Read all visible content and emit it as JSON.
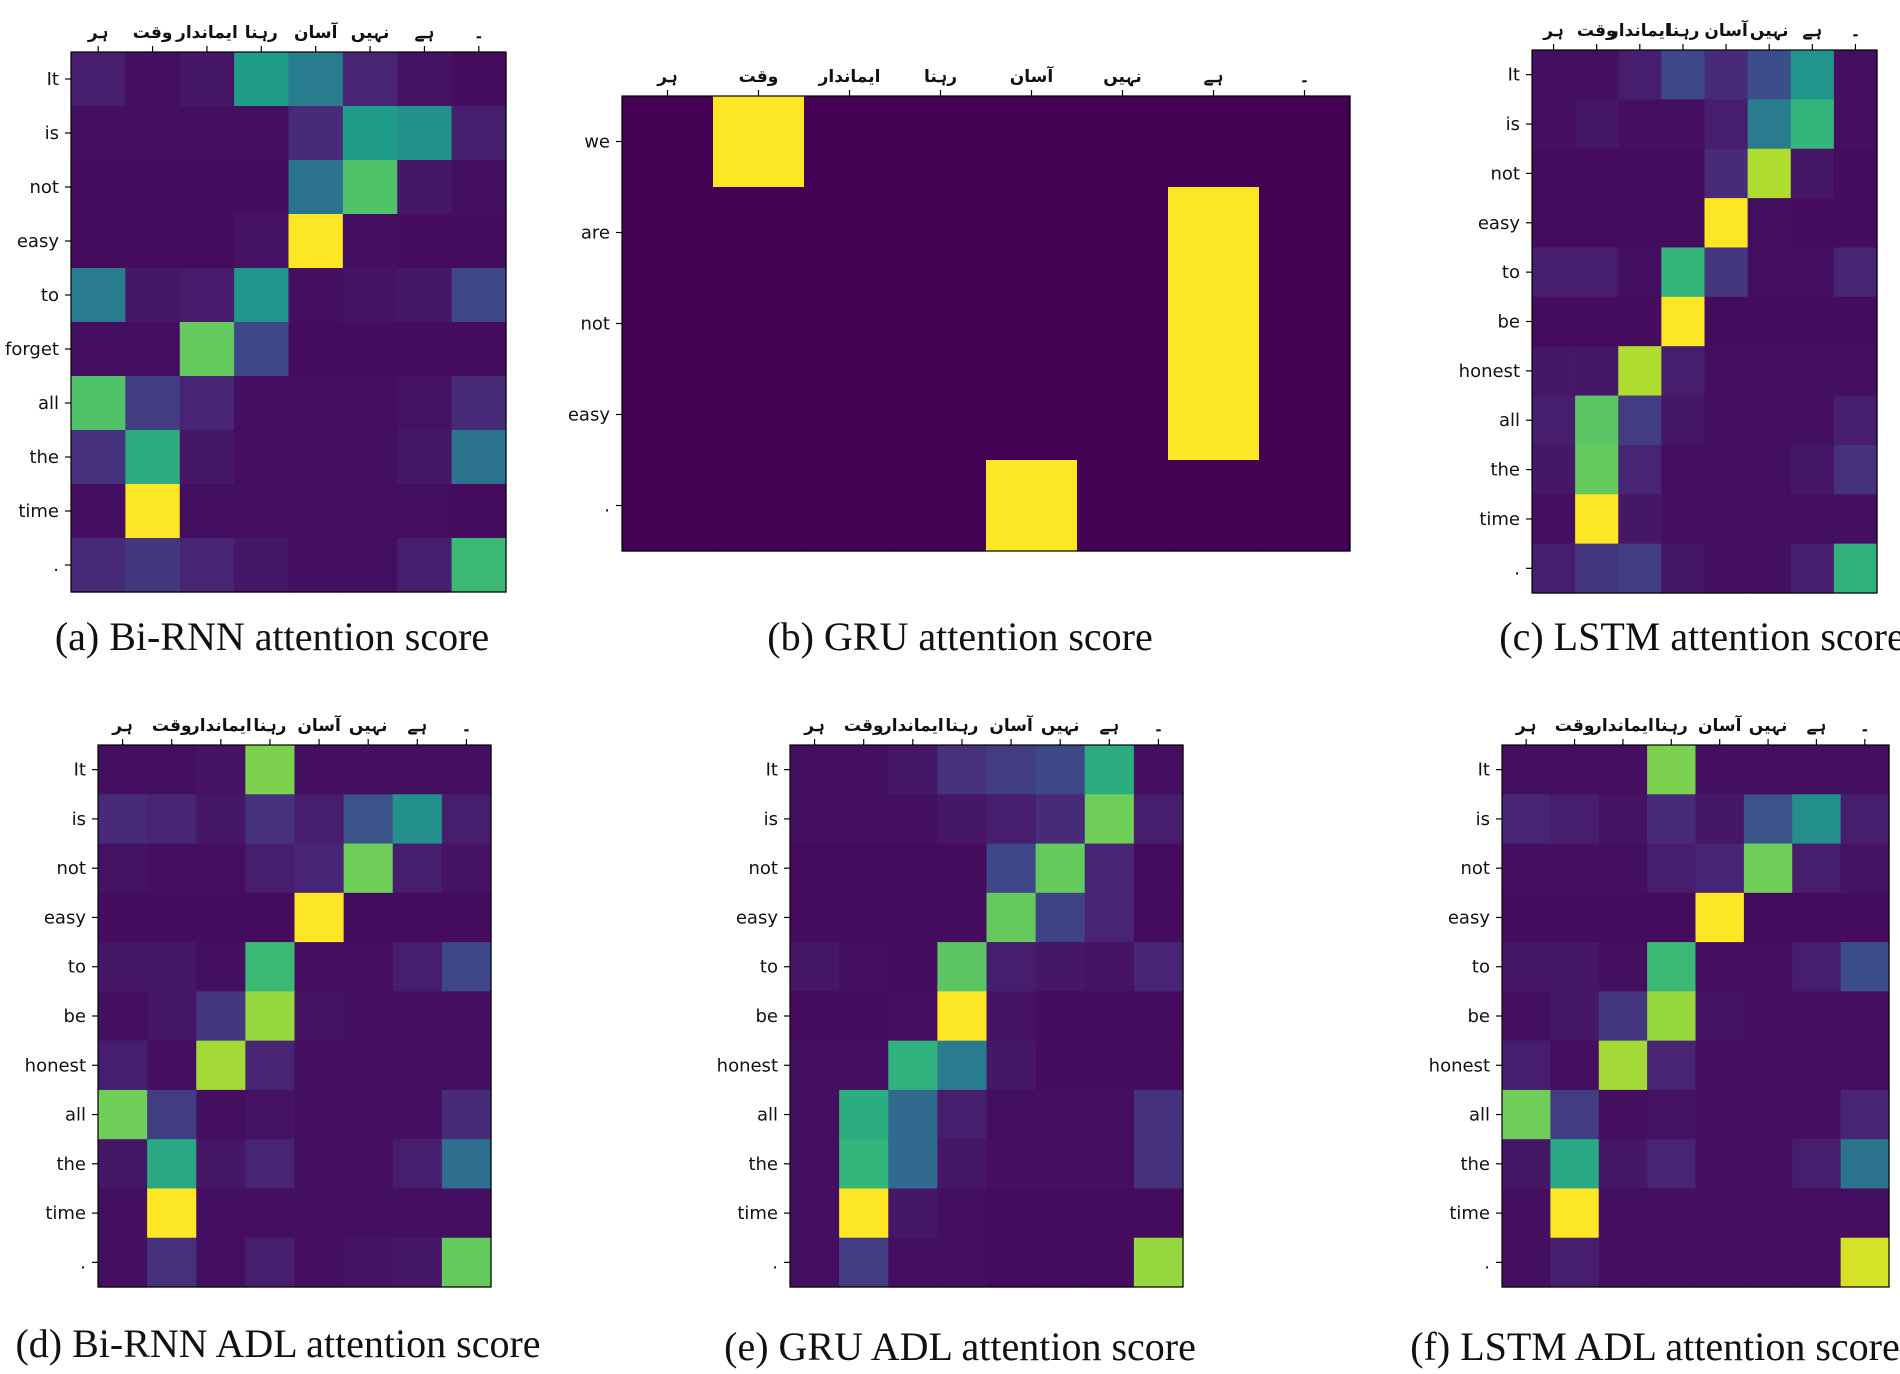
{
  "figure": {
    "colormap": [
      "#440154",
      "#482878",
      "#3e4989",
      "#31688e",
      "#26828e",
      "#1f9e89",
      "#35b779",
      "#6ece58",
      "#b5de2b",
      "#fde725"
    ]
  },
  "chart_data": [
    {
      "type": "heatmap",
      "title": "(a) Bi-RNN attention score",
      "x_labels": [
        "ہر",
        "وقت",
        "ایماندار",
        "رہنا",
        "آسان",
        "نہیں",
        "ہے",
        "۔"
      ],
      "y_labels": [
        "It",
        "is",
        "not",
        "easy",
        "to",
        "forget",
        "all",
        "the",
        "time",
        "."
      ],
      "value_range": [
        0,
        1
      ],
      "values": [
        [
          0.08,
          0.04,
          0.06,
          0.55,
          0.42,
          0.1,
          0.05,
          0.03
        ],
        [
          0.04,
          0.04,
          0.04,
          0.04,
          0.12,
          0.55,
          0.5,
          0.08
        ],
        [
          0.03,
          0.03,
          0.03,
          0.03,
          0.38,
          0.72,
          0.06,
          0.04
        ],
        [
          0.03,
          0.03,
          0.03,
          0.05,
          1.0,
          0.04,
          0.03,
          0.03
        ],
        [
          0.42,
          0.06,
          0.07,
          0.52,
          0.04,
          0.05,
          0.06,
          0.22
        ],
        [
          0.04,
          0.04,
          0.76,
          0.22,
          0.03,
          0.03,
          0.03,
          0.03
        ],
        [
          0.72,
          0.18,
          0.1,
          0.04,
          0.04,
          0.04,
          0.05,
          0.12
        ],
        [
          0.14,
          0.62,
          0.06,
          0.04,
          0.04,
          0.04,
          0.06,
          0.38
        ],
        [
          0.04,
          1.0,
          0.04,
          0.04,
          0.04,
          0.04,
          0.04,
          0.03
        ],
        [
          0.12,
          0.16,
          0.1,
          0.06,
          0.04,
          0.04,
          0.08,
          0.68
        ]
      ]
    },
    {
      "type": "heatmap",
      "title": "(b) GRU attention score",
      "x_labels": [
        "ہر",
        "وقت",
        "ایماندار",
        "رہنا",
        "آسان",
        "نہیں",
        "ہے",
        "۔"
      ],
      "y_labels": [
        "we",
        "are",
        "not",
        "easy",
        "."
      ],
      "value_range": [
        0,
        1
      ],
      "values": [
        [
          0.0,
          1.0,
          0.0,
          0.0,
          0.0,
          0.0,
          0.0,
          0.0
        ],
        [
          0.0,
          0.0,
          0.0,
          0.0,
          0.0,
          0.0,
          1.0,
          0.0
        ],
        [
          0.0,
          0.0,
          0.0,
          0.0,
          0.0,
          0.0,
          1.0,
          0.0
        ],
        [
          0.0,
          0.0,
          0.0,
          0.0,
          0.0,
          0.0,
          1.0,
          0.0
        ],
        [
          0.0,
          0.0,
          0.0,
          0.0,
          1.0,
          0.0,
          0.0,
          0.0
        ]
      ]
    },
    {
      "type": "heatmap",
      "title": "(c) LSTM attention score",
      "x_labels": [
        "ہر",
        "وقت",
        "ایماندار",
        "رہنا",
        "آسان",
        "نہیں",
        "ہے",
        "۔"
      ],
      "y_labels": [
        "It",
        "is",
        "not",
        "easy",
        "to",
        "be",
        "honest",
        "all",
        "the",
        "time",
        "."
      ],
      "value_range": [
        0,
        1
      ],
      "values": [
        [
          0.04,
          0.04,
          0.08,
          0.22,
          0.12,
          0.24,
          0.52,
          0.04
        ],
        [
          0.04,
          0.06,
          0.04,
          0.04,
          0.08,
          0.42,
          0.66,
          0.04
        ],
        [
          0.03,
          0.03,
          0.03,
          0.03,
          0.12,
          0.88,
          0.06,
          0.03
        ],
        [
          0.03,
          0.03,
          0.03,
          0.03,
          1.0,
          0.04,
          0.03,
          0.03
        ],
        [
          0.08,
          0.08,
          0.04,
          0.66,
          0.16,
          0.04,
          0.04,
          0.1
        ],
        [
          0.03,
          0.03,
          0.03,
          1.0,
          0.03,
          0.03,
          0.03,
          0.03
        ],
        [
          0.06,
          0.06,
          0.88,
          0.08,
          0.04,
          0.04,
          0.04,
          0.04
        ],
        [
          0.08,
          0.74,
          0.18,
          0.06,
          0.04,
          0.04,
          0.04,
          0.08
        ],
        [
          0.06,
          0.76,
          0.1,
          0.04,
          0.04,
          0.04,
          0.06,
          0.14
        ],
        [
          0.04,
          1.0,
          0.06,
          0.04,
          0.04,
          0.04,
          0.04,
          0.04
        ],
        [
          0.08,
          0.16,
          0.18,
          0.06,
          0.04,
          0.04,
          0.08,
          0.64
        ]
      ]
    },
    {
      "type": "heatmap",
      "title": "(d) Bi-RNN ADL attention score",
      "x_labels": [
        "ہر",
        "وقت",
        "ایماندار",
        "رہنا",
        "آسان",
        "نہیں",
        "ہے",
        "۔"
      ],
      "y_labels": [
        "It",
        "is",
        "not",
        "easy",
        "to",
        "be",
        "honest",
        "all",
        "the",
        "time",
        "."
      ],
      "value_range": [
        0,
        1
      ],
      "values": [
        [
          0.04,
          0.04,
          0.05,
          0.8,
          0.04,
          0.04,
          0.04,
          0.04
        ],
        [
          0.12,
          0.1,
          0.06,
          0.14,
          0.08,
          0.26,
          0.5,
          0.08
        ],
        [
          0.05,
          0.04,
          0.04,
          0.08,
          0.1,
          0.78,
          0.08,
          0.05
        ],
        [
          0.03,
          0.03,
          0.03,
          0.03,
          1.0,
          0.03,
          0.03,
          0.03
        ],
        [
          0.06,
          0.06,
          0.04,
          0.68,
          0.04,
          0.04,
          0.08,
          0.22
        ],
        [
          0.04,
          0.06,
          0.16,
          0.84,
          0.05,
          0.04,
          0.04,
          0.04
        ],
        [
          0.08,
          0.04,
          0.86,
          0.1,
          0.04,
          0.04,
          0.04,
          0.04
        ],
        [
          0.78,
          0.18,
          0.04,
          0.05,
          0.04,
          0.04,
          0.04,
          0.12
        ],
        [
          0.06,
          0.6,
          0.06,
          0.1,
          0.04,
          0.04,
          0.08,
          0.36
        ],
        [
          0.04,
          1.0,
          0.04,
          0.04,
          0.04,
          0.04,
          0.04,
          0.04
        ],
        [
          0.04,
          0.14,
          0.04,
          0.08,
          0.04,
          0.05,
          0.06,
          0.76
        ]
      ]
    },
    {
      "type": "heatmap",
      "title": "(e) GRU ADL attention score",
      "x_labels": [
        "ہر",
        "وقت",
        "ایماندار",
        "رہنا",
        "آسان",
        "نہیں",
        "ہے",
        "۔"
      ],
      "y_labels": [
        "It",
        "is",
        "not",
        "easy",
        "to",
        "be",
        "honest",
        "all",
        "the",
        "time",
        "."
      ],
      "value_range": [
        0,
        1
      ],
      "values": [
        [
          0.04,
          0.04,
          0.06,
          0.14,
          0.18,
          0.22,
          0.62,
          0.04
        ],
        [
          0.04,
          0.04,
          0.04,
          0.06,
          0.08,
          0.12,
          0.78,
          0.08
        ],
        [
          0.03,
          0.03,
          0.03,
          0.03,
          0.22,
          0.76,
          0.1,
          0.03
        ],
        [
          0.03,
          0.03,
          0.03,
          0.03,
          0.76,
          0.2,
          0.1,
          0.03
        ],
        [
          0.06,
          0.04,
          0.03,
          0.74,
          0.08,
          0.06,
          0.05,
          0.1
        ],
        [
          0.03,
          0.03,
          0.04,
          1.0,
          0.05,
          0.03,
          0.03,
          0.03
        ],
        [
          0.04,
          0.04,
          0.64,
          0.42,
          0.06,
          0.03,
          0.03,
          0.03
        ],
        [
          0.04,
          0.62,
          0.34,
          0.08,
          0.04,
          0.04,
          0.04,
          0.14
        ],
        [
          0.04,
          0.66,
          0.34,
          0.06,
          0.04,
          0.04,
          0.04,
          0.14
        ],
        [
          0.04,
          1.0,
          0.06,
          0.04,
          0.03,
          0.03,
          0.03,
          0.03
        ],
        [
          0.04,
          0.18,
          0.04,
          0.04,
          0.03,
          0.03,
          0.03,
          0.84
        ]
      ]
    },
    {
      "type": "heatmap",
      "title": "(f) LSTM ADL attention score",
      "x_labels": [
        "ہر",
        "وقت",
        "ایماندار",
        "رہنا",
        "آسان",
        "نہیں",
        "ہے",
        "۔"
      ],
      "y_labels": [
        "It",
        "is",
        "not",
        "easy",
        "to",
        "be",
        "honest",
        "all",
        "the",
        "time",
        "."
      ],
      "value_range": [
        0,
        1
      ],
      "values": [
        [
          0.04,
          0.04,
          0.04,
          0.8,
          0.04,
          0.04,
          0.04,
          0.04
        ],
        [
          0.1,
          0.08,
          0.05,
          0.12,
          0.06,
          0.26,
          0.5,
          0.08
        ],
        [
          0.04,
          0.04,
          0.04,
          0.08,
          0.1,
          0.78,
          0.08,
          0.05
        ],
        [
          0.03,
          0.03,
          0.03,
          0.03,
          1.0,
          0.03,
          0.03,
          0.03
        ],
        [
          0.06,
          0.06,
          0.04,
          0.68,
          0.04,
          0.04,
          0.08,
          0.24
        ],
        [
          0.04,
          0.06,
          0.16,
          0.84,
          0.05,
          0.04,
          0.04,
          0.04
        ],
        [
          0.08,
          0.04,
          0.86,
          0.1,
          0.04,
          0.04,
          0.04,
          0.04
        ],
        [
          0.78,
          0.18,
          0.04,
          0.05,
          0.04,
          0.04,
          0.04,
          0.1
        ],
        [
          0.06,
          0.6,
          0.06,
          0.1,
          0.04,
          0.04,
          0.08,
          0.38
        ],
        [
          0.04,
          1.0,
          0.04,
          0.04,
          0.04,
          0.04,
          0.04,
          0.04
        ],
        [
          0.04,
          0.08,
          0.04,
          0.04,
          0.04,
          0.04,
          0.04,
          0.94
        ]
      ]
    }
  ]
}
